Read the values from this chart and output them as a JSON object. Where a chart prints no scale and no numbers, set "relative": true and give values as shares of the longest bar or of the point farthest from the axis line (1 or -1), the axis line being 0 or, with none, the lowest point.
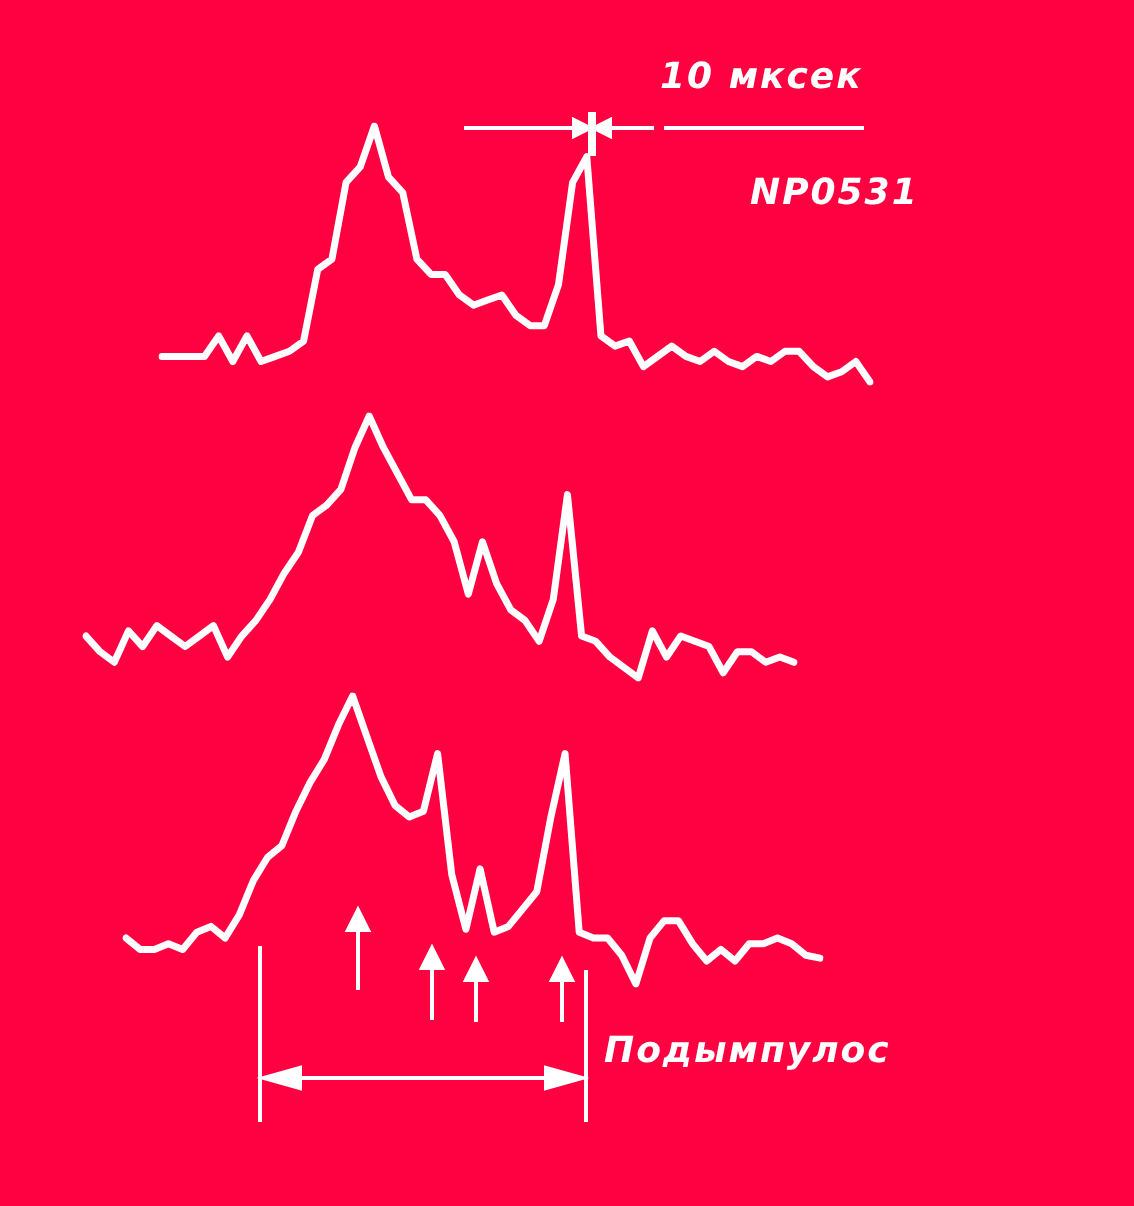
{
  "chart_data": [
    {
      "type": "line",
      "relative": true,
      "annotations": [
        "10 мксек",
        "NP0531"
      ],
      "categories": [
        null,
        null,
        null,
        null,
        null,
        null,
        null,
        null,
        null,
        null,
        null,
        null,
        null,
        null,
        null,
        null,
        null,
        null,
        null,
        null,
        null,
        null,
        null,
        null,
        null,
        null,
        null,
        null,
        null,
        null,
        null,
        null,
        null,
        null,
        null,
        null,
        null,
        null,
        null,
        null,
        null,
        null,
        null,
        null,
        null,
        null,
        null,
        null,
        null,
        null,
        null
      ],
      "series": [
        {
          "color": "#ffffff",
          "values": [
            0.1,
            0.1,
            0.1,
            0.1,
            0.18,
            0.08,
            0.18,
            0.08,
            0.1,
            0.12,
            0.16,
            0.44,
            0.48,
            0.78,
            0.84,
            1.0,
            0.8,
            0.74,
            0.48,
            0.42,
            0.42,
            0.34,
            0.3,
            0.32,
            0.34,
            0.26,
            0.22,
            0.22,
            0.38,
            0.78,
            0.88,
            0.18,
            0.14,
            0.16,
            0.06,
            0.1,
            0.14,
            0.1,
            0.08,
            0.12,
            0.08,
            0.06,
            0.1,
            0.08,
            0.12,
            0.12,
            0.06,
            0.02,
            0.04,
            0.08,
            0.0
          ]
        }
      ]
    },
    {
      "type": "line",
      "relative": true,
      "categories": [
        null,
        null,
        null,
        null,
        null,
        null,
        null,
        null,
        null,
        null,
        null,
        null,
        null,
        null,
        null,
        null,
        null,
        null,
        null,
        null,
        null,
        null,
        null,
        null,
        null,
        null,
        null,
        null,
        null,
        null,
        null,
        null,
        null,
        null,
        null,
        null,
        null,
        null,
        null,
        null,
        null,
        null,
        null,
        null,
        null,
        null,
        null,
        null,
        null,
        null,
        null
      ],
      "series": [
        {
          "color": "#ffffff",
          "values": [
            0.16,
            0.1,
            0.06,
            0.18,
            0.12,
            0.2,
            0.16,
            0.12,
            0.16,
            0.2,
            0.08,
            0.16,
            0.22,
            0.3,
            0.4,
            0.48,
            0.62,
            0.66,
            0.72,
            0.88,
            1.0,
            0.88,
            0.78,
            0.68,
            0.68,
            0.62,
            0.52,
            0.32,
            0.52,
            0.36,
            0.26,
            0.22,
            0.14,
            0.3,
            0.7,
            0.16,
            0.14,
            0.08,
            0.04,
            0.0,
            0.18,
            0.08,
            0.16,
            0.14,
            0.12,
            0.02,
            0.1,
            0.1,
            0.06,
            0.08,
            0.06
          ]
        }
      ]
    },
    {
      "type": "line",
      "relative": true,
      "annotations": [
        "Подымпулос"
      ],
      "categories": [
        null,
        null,
        null,
        null,
        null,
        null,
        null,
        null,
        null,
        null,
        null,
        null,
        null,
        null,
        null,
        null,
        null,
        null,
        null,
        null,
        null,
        null,
        null,
        null,
        null,
        null,
        null,
        null,
        null,
        null,
        null,
        null,
        null,
        null,
        null,
        null,
        null,
        null,
        null,
        null,
        null,
        null,
        null,
        null,
        null,
        null,
        null,
        null,
        null,
        null
      ],
      "series": [
        {
          "color": "#ffffff",
          "values": [
            0.16,
            0.12,
            0.12,
            0.14,
            0.12,
            0.18,
            0.2,
            0.16,
            0.24,
            0.36,
            0.44,
            0.48,
            0.6,
            0.7,
            0.78,
            0.9,
            1.0,
            0.86,
            0.72,
            0.62,
            0.58,
            0.6,
            0.8,
            0.38,
            0.19,
            0.4,
            0.18,
            0.2,
            0.26,
            0.32,
            0.58,
            0.8,
            0.18,
            0.16,
            0.16,
            0.1,
            0.0,
            0.16,
            0.22,
            0.22,
            0.14,
            0.08,
            0.12,
            0.08,
            0.14,
            0.14,
            0.16,
            0.14,
            0.1,
            0.09
          ]
        }
      ]
    }
  ]
}
